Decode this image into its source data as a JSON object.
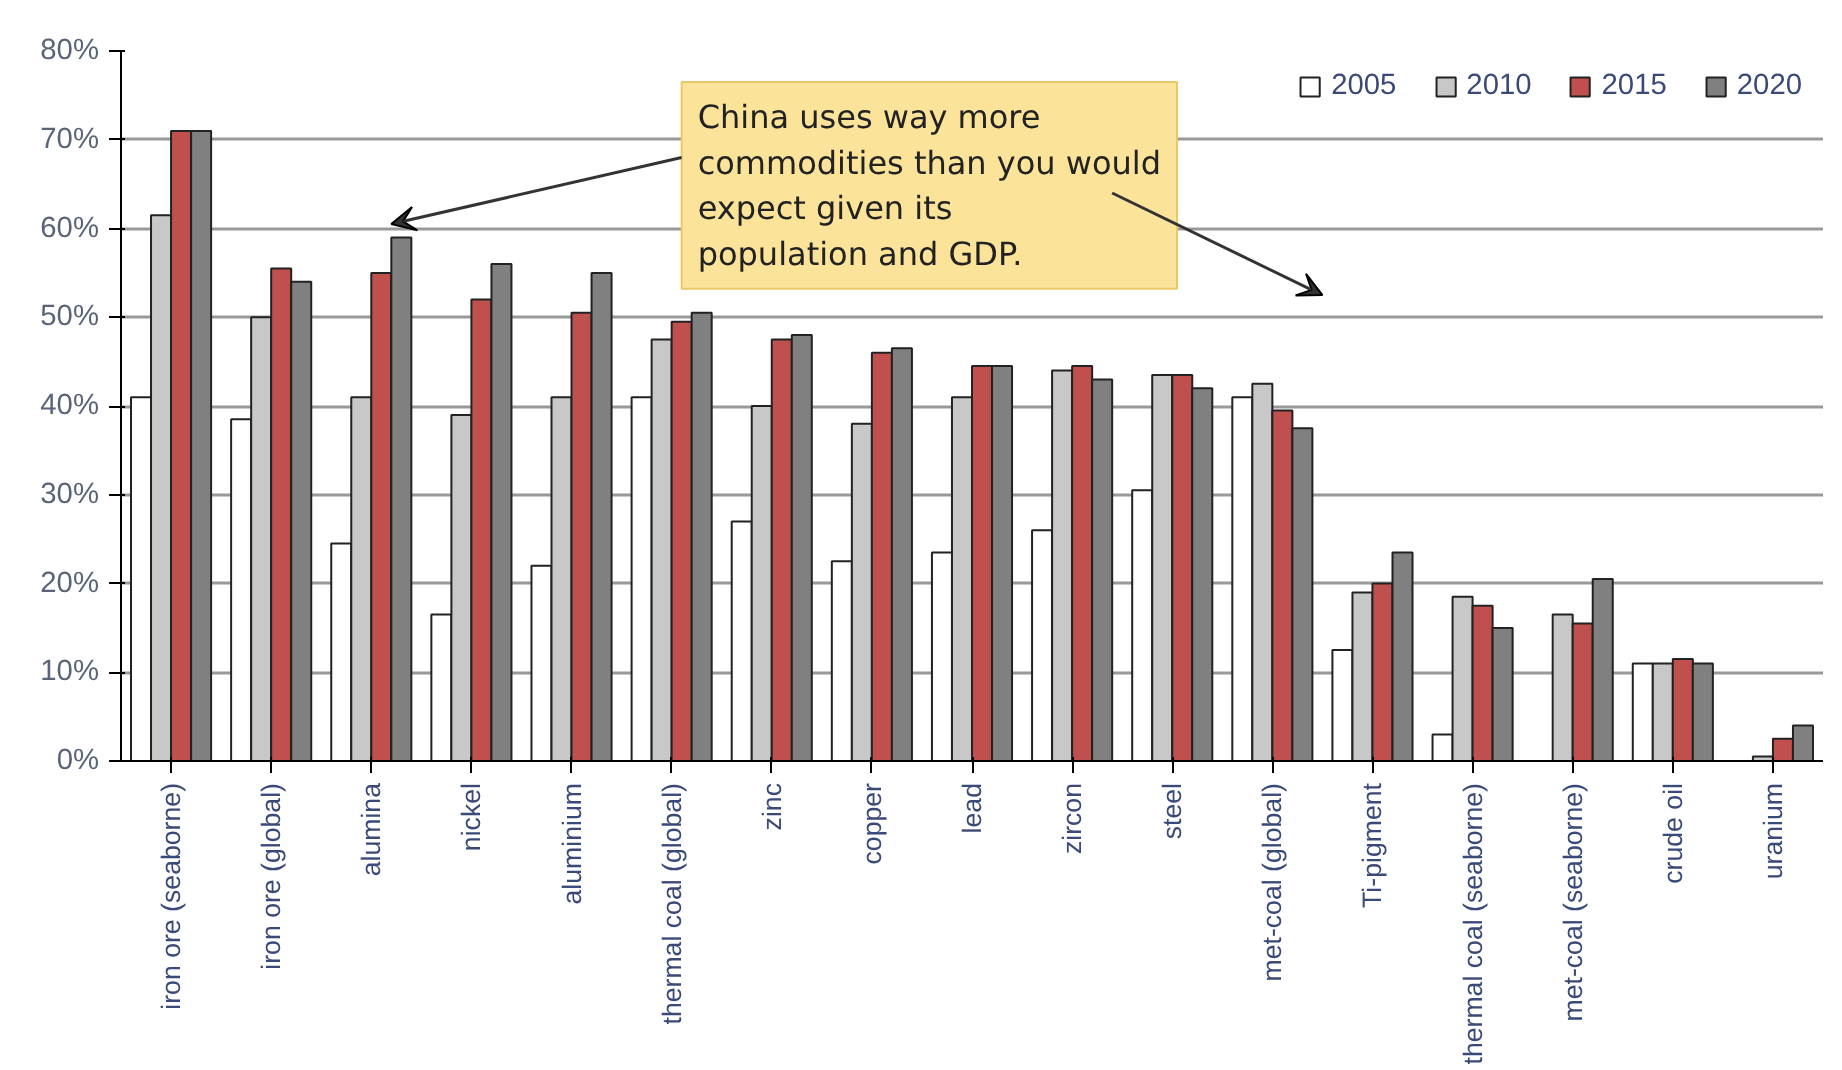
{
  "chart_data": {
    "type": "bar",
    "categories": [
      "iron ore (seaborne)",
      "iron ore (global)",
      "alumina",
      "nickel",
      "aluminium",
      "thermal coal (global)",
      "zinc",
      "copper",
      "lead",
      "zircon",
      "steel",
      "met-coal (global)",
      "Ti-pigment",
      "thermal coal (seaborne)",
      "met-coal (seaborne)",
      "crude oil",
      "uranium"
    ],
    "series": [
      {
        "name": "2005",
        "color": "#ffffff",
        "values": [
          41,
          38.5,
          24.5,
          16.5,
          22,
          41,
          27,
          22.5,
          23.5,
          26,
          30.5,
          41,
          12.5,
          3,
          null,
          11,
          null
        ]
      },
      {
        "name": "2010",
        "color": "#c8c8c8",
        "values": [
          61.5,
          50,
          41,
          39,
          41,
          47.5,
          40,
          38,
          41,
          44,
          43.5,
          42.5,
          19,
          18.5,
          16.5,
          11,
          0.5
        ]
      },
      {
        "name": "2015",
        "color": "#c0504d",
        "values": [
          71,
          55.5,
          55,
          52,
          50.5,
          49.5,
          47.5,
          46,
          44.5,
          44.5,
          43.5,
          39.5,
          20,
          17.5,
          15.5,
          11.5,
          2.5
        ]
      },
      {
        "name": "2020",
        "color": "#808080",
        "values": [
          71,
          54,
          59,
          56,
          55,
          50.5,
          48,
          46.5,
          44.5,
          43,
          42,
          37.5,
          23.5,
          15,
          20.5,
          11,
          4
        ]
      }
    ],
    "ylim": [
      0,
      80
    ],
    "yticks": [
      {
        "value": 0,
        "label": "0%"
      },
      {
        "value": 10,
        "label": "10%"
      },
      {
        "value": 20,
        "label": "20%"
      },
      {
        "value": 30,
        "label": "30%"
      },
      {
        "value": 40,
        "label": "40%"
      },
      {
        "value": 50,
        "label": "50%"
      },
      {
        "value": 60,
        "label": "60%"
      },
      {
        "value": 70,
        "label": "70%"
      },
      {
        "value": 80,
        "label": "80%"
      }
    ],
    "grid": "y",
    "legend": "top right",
    "annotations": [
      "China uses way more commodities than you would expect given its population and GDP."
    ]
  }
}
